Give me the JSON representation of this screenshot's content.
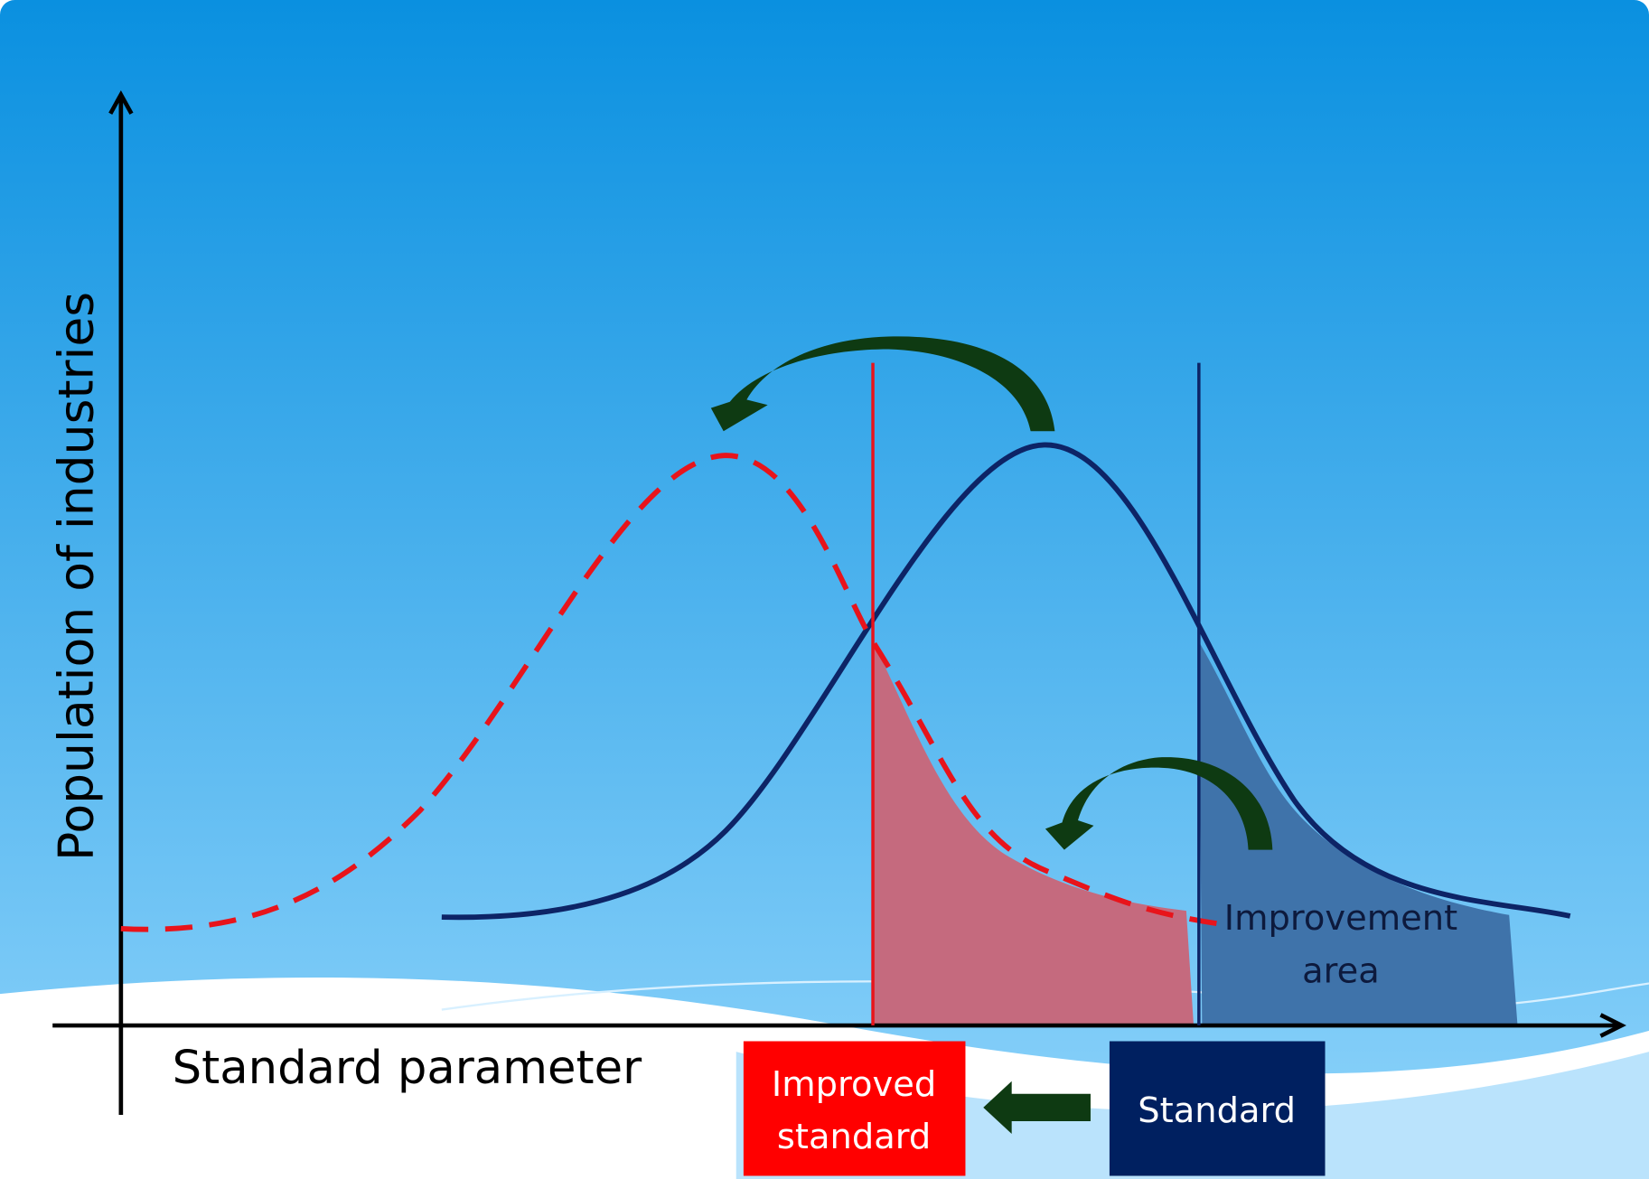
{
  "y_axis_label": "Population of industries",
  "x_axis_label": "Standard parameter",
  "improvement_area": [
    "Improvement",
    "area"
  ],
  "improved_standard_box": [
    "Improved",
    "standard"
  ],
  "standard_box": "Standard"
}
